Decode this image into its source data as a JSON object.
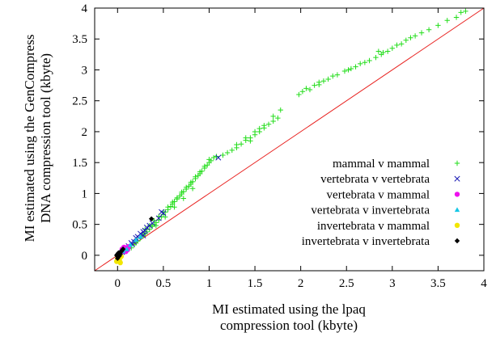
{
  "chart_data": {
    "type": "scatter",
    "title": "",
    "xlabel": [
      "MI estimated using the lpaq",
      "compression tool (kbyte)"
    ],
    "ylabel": [
      "MI estimated using the GenCompress",
      "DNA compression tool (kbyte)"
    ],
    "xlim": [
      -0.25,
      4
    ],
    "ylim": [
      -0.25,
      4
    ],
    "xticks": [
      0,
      0.5,
      1,
      1.5,
      2,
      2.5,
      3,
      3.5,
      4
    ],
    "yticks": [
      0,
      0.5,
      1,
      1.5,
      2,
      2.5,
      3,
      3.5,
      4
    ],
    "xtick_labels": [
      "0",
      "0.5",
      "1",
      "1.5",
      "2",
      "2.5",
      "3",
      "3.5",
      "4"
    ],
    "ytick_labels": [
      "0",
      "0.5",
      "1",
      "1.5",
      "2",
      "2.5",
      "3",
      "3.5",
      "4"
    ],
    "grid": false,
    "legend_position": "bottom-right",
    "reference_line": {
      "x": [
        -0.25,
        4
      ],
      "y": [
        -0.25,
        4
      ],
      "color": "#e8201e"
    },
    "series": [
      {
        "name": "mammal v mammal",
        "marker": "plus",
        "color": "#22dd1a",
        "points": [
          [
            0.15,
            0.12
          ],
          [
            0.18,
            0.17
          ],
          [
            0.2,
            0.2
          ],
          [
            0.22,
            0.23
          ],
          [
            0.25,
            0.28
          ],
          [
            0.28,
            0.32
          ],
          [
            0.3,
            0.35
          ],
          [
            0.32,
            0.38
          ],
          [
            0.35,
            0.42
          ],
          [
            0.38,
            0.47
          ],
          [
            0.4,
            0.5
          ],
          [
            0.42,
            0.53
          ],
          [
            0.45,
            0.57
          ],
          [
            0.48,
            0.62
          ],
          [
            0.5,
            0.66
          ],
          [
            0.52,
            0.7
          ],
          [
            0.55,
            0.74
          ],
          [
            0.58,
            0.79
          ],
          [
            0.6,
            0.83
          ],
          [
            0.62,
            0.87
          ],
          [
            0.65,
            0.91
          ],
          [
            0.68,
            0.96
          ],
          [
            0.7,
            0.99
          ],
          [
            0.72,
            1.03
          ],
          [
            0.75,
            1.07
          ],
          [
            0.78,
            1.12
          ],
          [
            0.8,
            1.15
          ],
          [
            0.82,
            1.19
          ],
          [
            0.85,
            1.24
          ],
          [
            0.88,
            1.29
          ],
          [
            0.9,
            1.32
          ],
          [
            0.92,
            1.36
          ],
          [
            0.95,
            1.41
          ],
          [
            0.98,
            1.46
          ],
          [
            1.0,
            1.5
          ],
          [
            1.02,
            1.53
          ],
          [
            1.05,
            1.58
          ],
          [
            1.08,
            1.6
          ],
          [
            0.3,
            0.42
          ],
          [
            0.35,
            0.48
          ],
          [
            0.4,
            0.56
          ],
          [
            0.45,
            0.63
          ],
          [
            0.5,
            0.7
          ],
          [
            0.55,
            0.78
          ],
          [
            0.6,
            0.86
          ],
          [
            0.65,
            0.93
          ],
          [
            0.7,
            1.02
          ],
          [
            0.75,
            1.1
          ],
          [
            0.8,
            1.18
          ],
          [
            0.85,
            1.27
          ],
          [
            0.9,
            1.35
          ],
          [
            0.95,
            1.44
          ],
          [
            1.0,
            1.55
          ],
          [
            0.42,
            0.48
          ],
          [
            0.52,
            0.62
          ],
          [
            0.62,
            0.78
          ],
          [
            0.72,
            0.92
          ],
          [
            0.82,
            1.08
          ],
          [
            1.15,
            1.62
          ],
          [
            1.2,
            1.66
          ],
          [
            1.25,
            1.7
          ],
          [
            1.3,
            1.74
          ],
          [
            1.35,
            1.8
          ],
          [
            1.4,
            1.86
          ],
          [
            1.45,
            1.9
          ],
          [
            1.5,
            1.95
          ],
          [
            1.55,
            2.0
          ],
          [
            1.6,
            2.06
          ],
          [
            1.65,
            2.12
          ],
          [
            1.7,
            2.17
          ],
          [
            1.75,
            2.22
          ],
          [
            1.3,
            1.79
          ],
          [
            1.4,
            1.9
          ],
          [
            1.5,
            2.0
          ],
          [
            1.6,
            2.1
          ],
          [
            1.7,
            2.25
          ],
          [
            1.78,
            2.35
          ],
          [
            1.45,
            1.85
          ],
          [
            1.55,
            2.05
          ],
          [
            1.98,
            2.6
          ],
          [
            2.02,
            2.65
          ],
          [
            2.06,
            2.7
          ],
          [
            2.1,
            2.68
          ],
          [
            2.15,
            2.75
          ],
          [
            2.2,
            2.8
          ],
          [
            2.25,
            2.82
          ],
          [
            2.3,
            2.85
          ],
          [
            2.35,
            2.9
          ],
          [
            2.4,
            2.92
          ],
          [
            2.48,
            2.98
          ],
          [
            2.52,
            3.0
          ],
          [
            2.6,
            3.05
          ],
          [
            2.65,
            3.1
          ],
          [
            2.7,
            3.12
          ],
          [
            2.75,
            3.15
          ],
          [
            2.82,
            3.2
          ],
          [
            2.88,
            3.25
          ],
          [
            2.95,
            3.3
          ],
          [
            3.0,
            3.35
          ],
          [
            3.05,
            3.4
          ],
          [
            3.1,
            3.42
          ],
          [
            3.15,
            3.48
          ],
          [
            3.2,
            3.52
          ],
          [
            3.25,
            3.55
          ],
          [
            3.32,
            3.6
          ],
          [
            3.4,
            3.65
          ],
          [
            3.5,
            3.72
          ],
          [
            3.6,
            3.8
          ],
          [
            3.7,
            3.85
          ],
          [
            3.75,
            3.93
          ],
          [
            3.8,
            3.95
          ],
          [
            2.85,
            3.3
          ],
          [
            2.9,
            3.28
          ],
          [
            2.55,
            3.02
          ],
          [
            2.2,
            2.76
          ]
        ]
      },
      {
        "name": "vertebrata v vertebrata",
        "marker": "x",
        "color": "#1b1bb5",
        "points": [
          [
            0.05,
            0.05
          ],
          [
            0.08,
            0.1
          ],
          [
            0.12,
            0.15
          ],
          [
            0.15,
            0.2
          ],
          [
            0.18,
            0.22
          ],
          [
            0.2,
            0.28
          ],
          [
            0.22,
            0.3
          ],
          [
            0.25,
            0.35
          ],
          [
            0.28,
            0.38
          ],
          [
            0.3,
            0.4
          ],
          [
            0.32,
            0.45
          ],
          [
            0.35,
            0.48
          ],
          [
            0.38,
            0.52
          ],
          [
            0.45,
            0.6
          ],
          [
            0.48,
            0.7
          ],
          [
            0.5,
            0.68
          ],
          [
            1.1,
            1.58
          ],
          [
            0.28,
            0.32
          ],
          [
            0.1,
            0.12
          ],
          [
            0.16,
            0.18
          ]
        ]
      },
      {
        "name": "vertebrata v mammal",
        "marker": "circle",
        "color": "#ee10ee",
        "points": [
          [
            0.02,
            0.02
          ],
          [
            0.04,
            0.05
          ],
          [
            0.06,
            0.08
          ],
          [
            0.08,
            0.1
          ],
          [
            0.1,
            0.12
          ],
          [
            0.12,
            0.14
          ],
          [
            0.05,
            0.1
          ],
          [
            0.09,
            0.06
          ],
          [
            0.11,
            0.09
          ],
          [
            0.07,
            0.13
          ]
        ]
      },
      {
        "name": "vertebrata v invertebrata",
        "marker": "triangle",
        "color": "#16c7e6",
        "points": [
          [
            0.0,
            0.0
          ],
          [
            0.02,
            0.04
          ],
          [
            0.04,
            0.02
          ],
          [
            0.06,
            0.07
          ],
          [
            0.1,
            0.1
          ],
          [
            0.14,
            0.17
          ],
          [
            0.2,
            0.25
          ],
          [
            0.25,
            0.3
          ]
        ]
      },
      {
        "name": "invertebrata v mammal",
        "marker": "circle",
        "color": "#f2e600",
        "points": [
          [
            0.0,
            -0.05
          ],
          [
            0.02,
            -0.08
          ],
          [
            -0.01,
            -0.1
          ],
          [
            0.03,
            -0.12
          ],
          [
            0.01,
            -0.03
          ],
          [
            0.04,
            -0.02
          ],
          [
            0.02,
            0.03
          ]
        ]
      },
      {
        "name": "invertebrata v invertebrata",
        "marker": "diamond",
        "color": "#000000",
        "points": [
          [
            0.0,
            -0.02
          ],
          [
            0.01,
            0.01
          ],
          [
            0.02,
            0.03
          ],
          [
            0.03,
            0.05
          ],
          [
            -0.01,
            0.0
          ],
          [
            0.0,
            0.02
          ],
          [
            0.02,
            -0.01
          ],
          [
            0.04,
            0.06
          ],
          [
            0.05,
            0.08
          ],
          [
            0.06,
            0.1
          ],
          [
            0.03,
            0.02
          ],
          [
            0.01,
            0.04
          ],
          [
            0.37,
            0.59
          ],
          [
            0.0,
            -0.05
          ]
        ]
      }
    ]
  }
}
